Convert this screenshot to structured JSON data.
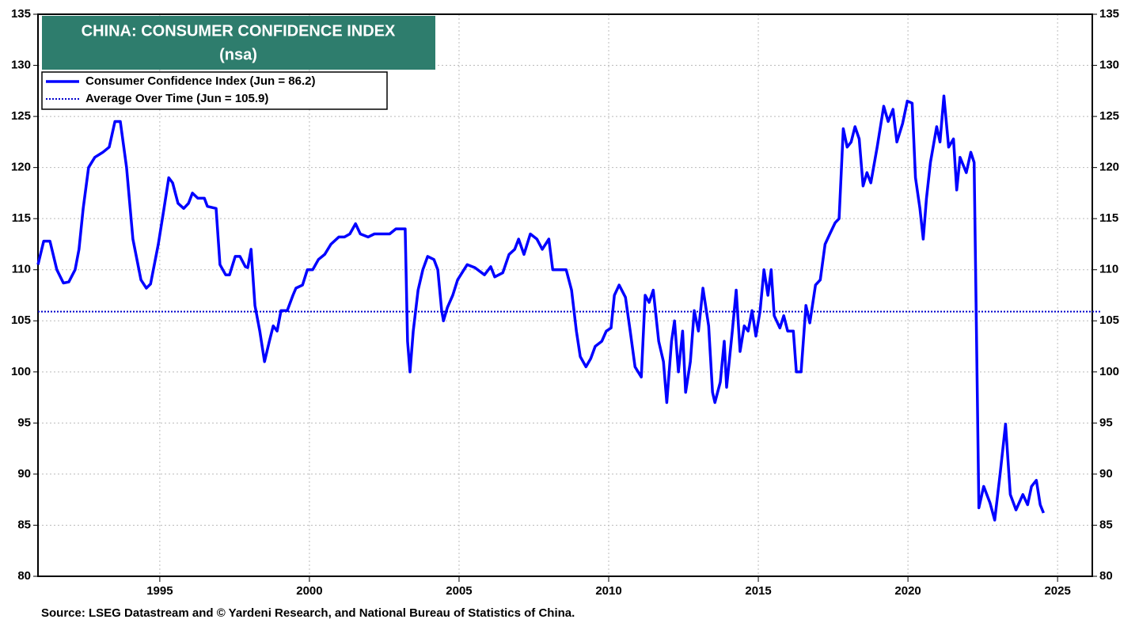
{
  "chart_data": {
    "type": "line",
    "title": "CHINA: CONSUMER CONFIDENCE INDEX",
    "subtitle": "(nsa)",
    "source": "Source: LSEG Datastream and © Yardeni Research, and National Bureau of Statistics of China.",
    "xlim": [
      1990.93,
      2026.16
    ],
    "xticks": [
      1995,
      2000,
      2005,
      2010,
      2015,
      2020,
      2025
    ],
    "ylim": [
      80,
      135
    ],
    "yticks": [
      80,
      85,
      90,
      95,
      100,
      105,
      110,
      115,
      120,
      125,
      130,
      135
    ],
    "grid": true,
    "x": [
      1990.93,
      1991.12,
      1991.33,
      1991.56,
      1991.78,
      1991.96,
      1992.17,
      1992.3,
      1992.44,
      1992.62,
      1992.83,
      1993.1,
      1993.31,
      1993.5,
      1993.68,
      1993.89,
      1994.1,
      1994.37,
      1994.55,
      1994.69,
      1994.95,
      1995.14,
      1995.3,
      1995.43,
      1995.61,
      1995.8,
      1995.96,
      1996.09,
      1996.27,
      1996.49,
      1996.59,
      1996.88,
      1997.01,
      1997.2,
      1997.33,
      1997.52,
      1997.68,
      1997.86,
      1997.94,
      1998.05,
      1998.18,
      1998.34,
      1998.5,
      1998.66,
      1998.79,
      1998.92,
      1999.05,
      1999.26,
      1999.45,
      1999.55,
      1999.77,
      1999.93,
      2000.11,
      2000.3,
      2000.51,
      2000.72,
      2000.98,
      2001.17,
      2001.35,
      2001.54,
      2001.7,
      2001.96,
      2002.17,
      2002.41,
      2002.68,
      2002.89,
      2003.2,
      2003.28,
      2003.36,
      2003.47,
      2003.63,
      2003.79,
      2003.95,
      2004.16,
      2004.29,
      2004.42,
      2004.48,
      2004.61,
      2004.79,
      2004.95,
      2005.27,
      2005.53,
      2005.85,
      2006.06,
      2006.19,
      2006.46,
      2006.67,
      2006.86,
      2006.99,
      2007.17,
      2007.38,
      2007.6,
      2007.78,
      2008,
      2008.13,
      2008.31,
      2008.58,
      2008.76,
      2008.92,
      2009.05,
      2009.24,
      2009.4,
      2009.55,
      2009.77,
      2009.92,
      2010.08,
      2010.19,
      2010.35,
      2010.56,
      2010.72,
      2010.88,
      2011.09,
      2011.22,
      2011.35,
      2011.49,
      2011.67,
      2011.83,
      2011.94,
      2012.1,
      2012.2,
      2012.33,
      2012.47,
      2012.57,
      2012.73,
      2012.86,
      2013,
      2013.15,
      2013.34,
      2013.47,
      2013.55,
      2013.73,
      2013.86,
      2013.94,
      2014.13,
      2014.26,
      2014.39,
      2014.53,
      2014.66,
      2014.79,
      2014.92,
      2015.06,
      2015.19,
      2015.32,
      2015.43,
      2015.53,
      2015.72,
      2015.85,
      2015.98,
      2016.17,
      2016.27,
      2016.43,
      2016.59,
      2016.72,
      2016.91,
      2017.07,
      2017.23,
      2017.39,
      2017.57,
      2017.7,
      2017.84,
      2017.97,
      2018.1,
      2018.23,
      2018.37,
      2018.5,
      2018.63,
      2018.76,
      2018.97,
      2019.19,
      2019.34,
      2019.5,
      2019.63,
      2019.82,
      2019.98,
      2020.14,
      2020.25,
      2020.4,
      2020.51,
      2020.62,
      2020.75,
      2020.96,
      2021.07,
      2021.2,
      2021.36,
      2021.52,
      2021.63,
      2021.74,
      2021.95,
      2022.1,
      2022.21,
      2022.37,
      2022.53,
      2022.74,
      2022.9,
      2023.08,
      2023.26,
      2023.42,
      2023.61,
      2023.84,
      2024,
      2024.13,
      2024.29,
      2024.42,
      2024.53
    ],
    "series": [
      {
        "name": "Consumer Confidence Index (Jun = 86.2)",
        "color": "#0000ff",
        "values": [
          110.5,
          112.8,
          112.8,
          110,
          108.7,
          108.8,
          110,
          112,
          116,
          120,
          121,
          121.5,
          122,
          124.5,
          124.5,
          120,
          113,
          109,
          108.2,
          108.6,
          112.5,
          116,
          119,
          118.5,
          116.5,
          116,
          116.5,
          117.5,
          117,
          117,
          116.2,
          116,
          110.5,
          109.5,
          109.5,
          111.3,
          111.3,
          110.3,
          110.2,
          112,
          106.5,
          104,
          101,
          103,
          104.5,
          104,
          106,
          106,
          107.5,
          108.2,
          108.5,
          110,
          110,
          111,
          111.5,
          112.5,
          113.2,
          113.2,
          113.5,
          114.5,
          113.5,
          113.2,
          113.5,
          113.5,
          113.5,
          114,
          114,
          103,
          100,
          104,
          108,
          110,
          111.3,
          111,
          110,
          106,
          105,
          106.3,
          107.5,
          109,
          110.5,
          110.2,
          109.5,
          110.3,
          109.3,
          109.7,
          111.5,
          112,
          113,
          111.5,
          113.5,
          113,
          112,
          113,
          110,
          110,
          110,
          108,
          104,
          101.5,
          100.5,
          101.3,
          102.5,
          103,
          104,
          104.3,
          107.5,
          108.5,
          107.3,
          104,
          100.5,
          99.5,
          107.5,
          106.8,
          108,
          103,
          101,
          97,
          103,
          105,
          100,
          104,
          98,
          101,
          106,
          104,
          108.2,
          104.5,
          98,
          97,
          99,
          103,
          98.5,
          104,
          108,
          102,
          104.5,
          104,
          106,
          103.5,
          106,
          110,
          107.5,
          110,
          105.5,
          104.3,
          105.5,
          104,
          104,
          100,
          100,
          106.5,
          104.8,
          108.5,
          109,
          112.5,
          113.5,
          114.6,
          115,
          123.8,
          122,
          122.5,
          124,
          122.8,
          118.2,
          119.5,
          118.5,
          122,
          126,
          124.5,
          125.7,
          122.5,
          124.3,
          126.5,
          126.3,
          119,
          116,
          113,
          117,
          120.5,
          124,
          122.5,
          127,
          122,
          122.8,
          117.8,
          121,
          119.5,
          121.5,
          120.5,
          86.7,
          88.8,
          87.2,
          85.5,
          90,
          94.9,
          88,
          86.5,
          88,
          87,
          88.8,
          89.4,
          87,
          86.2
        ]
      }
    ],
    "reference_lines": [
      {
        "name": "Average Over Time (Jun = 105.9)",
        "value": 105.9,
        "color": "#0000cc"
      }
    ]
  }
}
